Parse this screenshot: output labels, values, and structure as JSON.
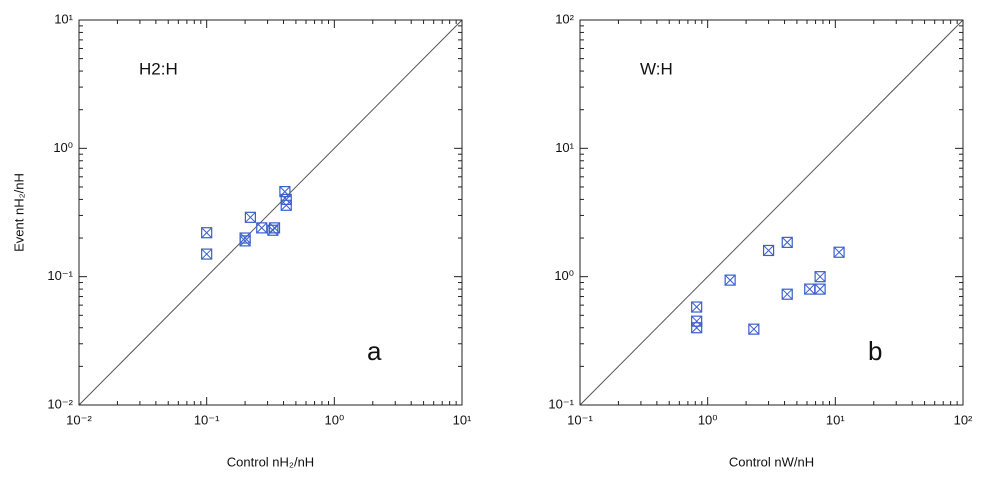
{
  "chart_data": [
    {
      "type": "scatter",
      "annotation": "H2:H",
      "panel_label": "a",
      "x_label": "Control nH₂/nH",
      "y_label": "Event nH₂/nH",
      "x": [
        0.1,
        0.1,
        0.2,
        0.2,
        0.22,
        0.27,
        0.33,
        0.34,
        0.41,
        0.42,
        0.42
      ],
      "values": [
        0.22,
        0.15,
        0.19,
        0.2,
        0.29,
        0.24,
        0.23,
        0.24,
        0.46,
        0.4,
        0.36
      ],
      "color": "#3a5fcd",
      "log_scale": true,
      "xlim": [
        0.01,
        10
      ],
      "ylim": [
        0.01,
        10
      ],
      "xticks": [
        {
          "value": 0.01,
          "label": "10⁻²"
        },
        {
          "value": 0.1,
          "label": "10⁻¹"
        },
        {
          "value": 1,
          "label": "10⁰"
        },
        {
          "value": 10,
          "label": "10¹"
        }
      ],
      "yticks": [
        {
          "value": 0.01,
          "label": "10⁻²"
        },
        {
          "value": 0.1,
          "label": "10⁻¹"
        },
        {
          "value": 1,
          "label": "10⁰"
        },
        {
          "value": 10,
          "label": "10¹"
        }
      ]
    },
    {
      "type": "scatter",
      "annotation": "W:H",
      "panel_label": "b",
      "x_label": "Control nW/nH",
      "x": [
        0.82,
        0.82,
        0.82,
        1.5,
        2.3,
        3.0,
        4.2,
        4.2,
        6.3,
        7.6,
        7.6,
        10.7
      ],
      "values": [
        0.58,
        0.45,
        0.4,
        0.94,
        0.39,
        1.6,
        1.85,
        0.73,
        0.8,
        1.0,
        0.8,
        1.55
      ],
      "color": "#3a5fcd",
      "log_scale": true,
      "xlim": [
        0.1,
        100
      ],
      "ylim": [
        0.1,
        100
      ],
      "xticks": [
        {
          "value": 0.1,
          "label": "10⁻¹"
        },
        {
          "value": 1,
          "label": "10⁰"
        },
        {
          "value": 10,
          "label": "10¹"
        },
        {
          "value": 100,
          "label": "10²"
        }
      ],
      "yticks": [
        {
          "value": 0.1,
          "label": "10⁻¹"
        },
        {
          "value": 1,
          "label": "10⁰"
        },
        {
          "value": 10,
          "label": "10¹"
        },
        {
          "value": 100,
          "label": "10²"
        }
      ]
    }
  ]
}
